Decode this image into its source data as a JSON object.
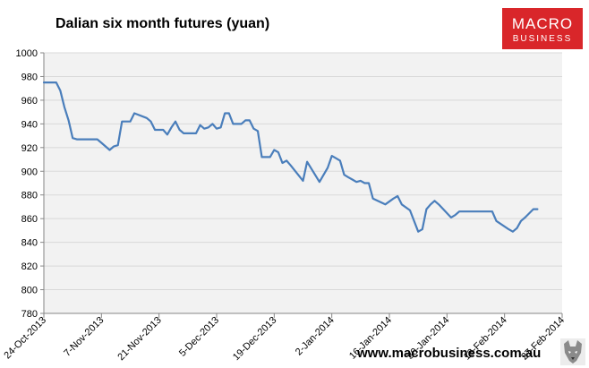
{
  "chart_data": {
    "type": "line",
    "title": "Dalian six month futures (yuan)",
    "xlabel": "",
    "ylabel": "",
    "ylim": [
      780,
      1000
    ],
    "yticks": [
      780,
      800,
      820,
      840,
      860,
      880,
      900,
      920,
      940,
      960,
      980,
      1000
    ],
    "xticks": [
      "24-Oct-2013",
      "7-Nov-2013",
      "21-Nov-2013",
      "5-Dec-2013",
      "19-Dec-2013",
      "2-Jan-2014",
      "16-Jan-2014",
      "30-Jan-2014",
      "13-Feb-2014",
      "27-Feb-2014"
    ],
    "xlim": [
      "2013-10-24",
      "2014-02-27"
    ],
    "grid": true,
    "legend": "none",
    "series": [
      {
        "color": "#4a7ebb",
        "points": [
          [
            "2013-10-24",
            975
          ],
          [
            "2013-10-25",
            975
          ],
          [
            "2013-10-26",
            975
          ],
          [
            "2013-10-27",
            975
          ],
          [
            "2013-10-28",
            968
          ],
          [
            "2013-10-29",
            954
          ],
          [
            "2013-10-30",
            943
          ],
          [
            "2013-10-31",
            928
          ],
          [
            "2013-11-01",
            927
          ],
          [
            "2013-11-04",
            927
          ],
          [
            "2013-11-05",
            927
          ],
          [
            "2013-11-06",
            927
          ],
          [
            "2013-11-07",
            924
          ],
          [
            "2013-11-08",
            921
          ],
          [
            "2013-11-09",
            918
          ],
          [
            "2013-11-10",
            921
          ],
          [
            "2013-11-11",
            922
          ],
          [
            "2013-11-12",
            942
          ],
          [
            "2013-11-13",
            942
          ],
          [
            "2013-11-14",
            942
          ],
          [
            "2013-11-15",
            949
          ],
          [
            "2013-11-18",
            945
          ],
          [
            "2013-11-19",
            942
          ],
          [
            "2013-11-20",
            935
          ],
          [
            "2013-11-21",
            935
          ],
          [
            "2013-11-22",
            935
          ],
          [
            "2013-11-23",
            931
          ],
          [
            "2013-11-24",
            937
          ],
          [
            "2013-11-25",
            942
          ],
          [
            "2013-11-26",
            935
          ],
          [
            "2013-11-27",
            932
          ],
          [
            "2013-11-28",
            932
          ],
          [
            "2013-11-29",
            932
          ],
          [
            "2013-11-30",
            932
          ],
          [
            "2013-12-01",
            939
          ],
          [
            "2013-12-02",
            936
          ],
          [
            "2013-12-03",
            937
          ],
          [
            "2013-12-04",
            940
          ],
          [
            "2013-12-05",
            936
          ],
          [
            "2013-12-06",
            937
          ],
          [
            "2013-12-07",
            949
          ],
          [
            "2013-12-08",
            949
          ],
          [
            "2013-12-09",
            940
          ],
          [
            "2013-12-10",
            940
          ],
          [
            "2013-12-11",
            940
          ],
          [
            "2013-12-12",
            943
          ],
          [
            "2013-12-13",
            943
          ],
          [
            "2013-12-14",
            936
          ],
          [
            "2013-12-15",
            934
          ],
          [
            "2013-12-16",
            912
          ],
          [
            "2013-12-17",
            912
          ],
          [
            "2013-12-18",
            912
          ],
          [
            "2013-12-19",
            918
          ],
          [
            "2013-12-20",
            916
          ],
          [
            "2013-12-21",
            907
          ],
          [
            "2013-12-22",
            909
          ],
          [
            "2013-12-23",
            905
          ],
          [
            "2013-12-26",
            892
          ],
          [
            "2013-12-27",
            908
          ],
          [
            "2013-12-30",
            891
          ],
          [
            "2014-01-01",
            903
          ],
          [
            "2014-01-02",
            913
          ],
          [
            "2014-01-03",
            911
          ],
          [
            "2014-01-04",
            909
          ],
          [
            "2014-01-05",
            897
          ],
          [
            "2014-01-06",
            895
          ],
          [
            "2014-01-07",
            893
          ],
          [
            "2014-01-08",
            891
          ],
          [
            "2014-01-09",
            892
          ],
          [
            "2014-01-10",
            890
          ],
          [
            "2014-01-11",
            890
          ],
          [
            "2014-01-12",
            877
          ],
          [
            "2014-01-15",
            872
          ],
          [
            "2014-01-17",
            877
          ],
          [
            "2014-01-18",
            879
          ],
          [
            "2014-01-19",
            872
          ],
          [
            "2014-01-21",
            867
          ],
          [
            "2014-01-23",
            849
          ],
          [
            "2014-01-24",
            851
          ],
          [
            "2014-01-25",
            868
          ],
          [
            "2014-01-26",
            872
          ],
          [
            "2014-01-27",
            875
          ],
          [
            "2014-01-28",
            872
          ],
          [
            "2014-01-31",
            861
          ],
          [
            "2014-02-01",
            863
          ],
          [
            "2014-02-02",
            866
          ],
          [
            "2014-02-03",
            866
          ],
          [
            "2014-02-07",
            866
          ],
          [
            "2014-02-10",
            866
          ],
          [
            "2014-02-11",
            858
          ],
          [
            "2014-02-14",
            851
          ],
          [
            "2014-02-15",
            849
          ],
          [
            "2014-02-16",
            852
          ],
          [
            "2014-02-17",
            858
          ],
          [
            "2014-02-18",
            861
          ],
          [
            "2014-02-20",
            868
          ],
          [
            "2014-02-21",
            868
          ]
        ]
      }
    ]
  },
  "branding": {
    "logo_line1": "MACRO",
    "logo_line2": "BUSINESS",
    "logo_color": "#d9262a",
    "footer_url": "www.macrobusiness.com.au"
  },
  "colors": {
    "plot_background": "#f2f2f2",
    "gridline": "#d9d9d9",
    "axis": "#868686",
    "line": "#4a7ebb"
  }
}
